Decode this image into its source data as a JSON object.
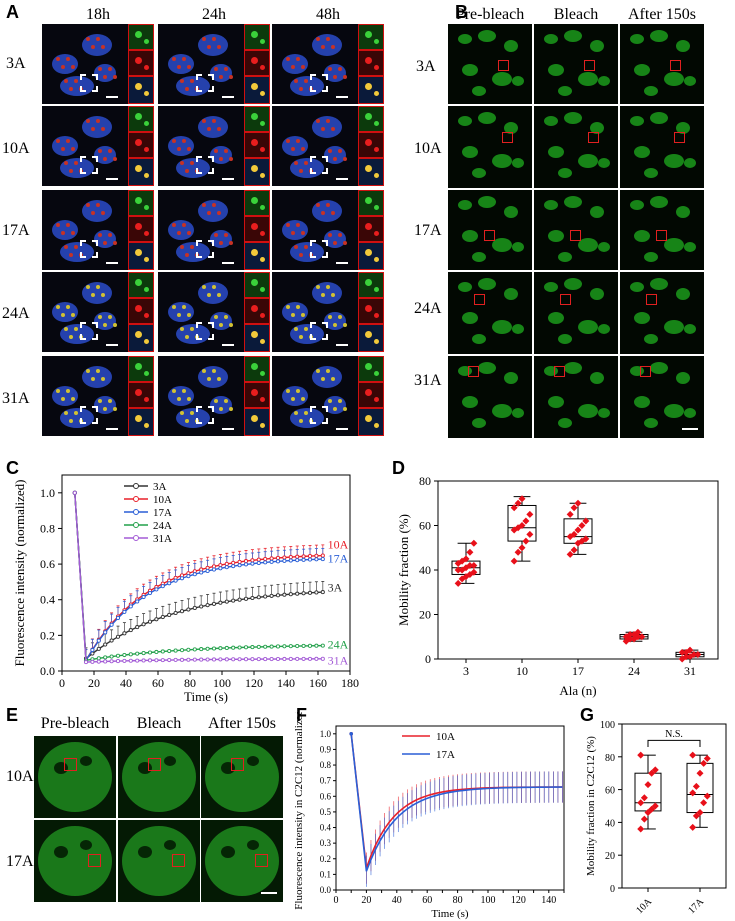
{
  "panels": {
    "A": "A",
    "B": "B",
    "C": "C",
    "D": "D",
    "E": "E",
    "F": "F",
    "G": "G"
  },
  "panelA": {
    "columns": [
      "18h",
      "24h",
      "48h"
    ],
    "rows": [
      "3A",
      "10A",
      "17A",
      "24A",
      "31A"
    ]
  },
  "panelB": {
    "columns": [
      "Pre-bleach",
      "Bleach",
      "After 150s"
    ],
    "rows": [
      "3A",
      "10A",
      "17A",
      "24A",
      "31A"
    ]
  },
  "panelE": {
    "columns": [
      "Pre-bleach",
      "Bleach",
      "After 150s"
    ],
    "rows": [
      "10A",
      "17A"
    ]
  },
  "colors": {
    "c3A": "#333333",
    "c10A": "#e8202a",
    "c17A": "#2a5fd6",
    "c24A": "#22a04a",
    "c31A": "#a35bd6",
    "point": "#e8101a"
  },
  "chart_data": [
    {
      "id": "C",
      "type": "line",
      "xlabel": "Time (s)",
      "ylabel": "Fluorescence intensity (normalized)",
      "xlim": [
        0,
        180
      ],
      "ylim": [
        0,
        1.1
      ],
      "xticks": [
        0,
        20,
        40,
        60,
        80,
        100,
        120,
        140,
        160,
        180
      ],
      "yticks": [
        0,
        0.2,
        0.4,
        0.6,
        0.8,
        1.0
      ],
      "ytick_labels": [
        "0.0",
        "0.2",
        "0.4",
        "0.6",
        "0.8",
        "1.0"
      ],
      "legend": [
        "3A",
        "10A",
        "17A",
        "24A",
        "31A"
      ],
      "end_labels": [
        "10A",
        "17A",
        "3A",
        "24A",
        "31A"
      ],
      "series": [
        {
          "name": "3A",
          "plateau": 0.47,
          "min": 0.07,
          "tau": 55
        },
        {
          "name": "10A",
          "plateau": 0.66,
          "min": 0.06,
          "tau": 38
        },
        {
          "name": "17A",
          "plateau": 0.64,
          "min": 0.06,
          "tau": 38
        },
        {
          "name": "24A",
          "plateau": 0.15,
          "min": 0.06,
          "tau": 60
        },
        {
          "name": "31A",
          "plateau": 0.07,
          "min": 0.05,
          "tau": 60
        }
      ]
    },
    {
      "id": "D",
      "type": "box",
      "xlabel": "Ala (n)",
      "ylabel": "Mobility fraction (%)",
      "ylim": [
        0,
        80
      ],
      "yticks": [
        0,
        20,
        40,
        60,
        80
      ],
      "categories": [
        "3",
        "10",
        "17",
        "24",
        "31"
      ],
      "boxes": [
        {
          "q1": 38,
          "median": 41,
          "q3": 44,
          "wlo": 34,
          "whi": 52,
          "points": [
            34,
            36,
            37,
            38,
            39,
            40,
            40,
            41,
            42,
            42,
            43,
            44,
            45,
            48,
            52
          ]
        },
        {
          "q1": 53,
          "median": 59,
          "q3": 69,
          "wlo": 44,
          "whi": 73,
          "points": [
            44,
            48,
            50,
            53,
            56,
            58,
            59,
            60,
            62,
            65,
            68,
            70,
            72
          ]
        },
        {
          "q1": 52,
          "median": 55,
          "q3": 63,
          "wlo": 47,
          "whi": 70,
          "points": [
            47,
            49,
            52,
            53,
            54,
            55,
            56,
            58,
            60,
            62,
            65,
            68,
            70
          ]
        },
        {
          "q1": 9,
          "median": 10,
          "q3": 11,
          "wlo": 8,
          "whi": 12,
          "points": [
            8,
            9,
            9,
            10,
            10,
            10,
            11,
            11,
            12
          ]
        },
        {
          "q1": 1,
          "median": 2,
          "q3": 3,
          "wlo": 0,
          "whi": 4,
          "points": [
            0,
            1,
            1,
            2,
            2,
            3,
            3,
            4
          ]
        }
      ]
    },
    {
      "id": "F",
      "type": "line",
      "xlabel": "Time (s)",
      "ylabel": "Fluorescence intensity in C2C12 (normalized)",
      "xlim": [
        0,
        150
      ],
      "ylim": [
        0,
        1.05
      ],
      "xticks": [
        0,
        10,
        20,
        30,
        40,
        50,
        60,
        70,
        80,
        90,
        100,
        110,
        120,
        130,
        140,
        150
      ],
      "xtick_labels": [
        "0",
        "",
        "20",
        "",
        "40",
        "",
        "60",
        "",
        "80",
        "",
        "100",
        "",
        "120",
        "",
        "140",
        ""
      ],
      "yticks": [
        0,
        0.1,
        0.2,
        0.3,
        0.4,
        0.5,
        0.6,
        0.7,
        0.8,
        0.9,
        1.0
      ],
      "ytick_labels": [
        "0.0",
        "0.1",
        "0.2",
        "0.3",
        "0.4",
        "0.5",
        "0.6",
        "0.7",
        "0.8",
        "0.9",
        "1.0"
      ],
      "legend": [
        "10A",
        "17A"
      ],
      "series": [
        {
          "name": "10A",
          "plateau": 0.66,
          "min": 0.14,
          "tau": 18
        },
        {
          "name": "17A",
          "plateau": 0.66,
          "min": 0.12,
          "tau": 20
        }
      ]
    },
    {
      "id": "G",
      "type": "box",
      "ylabel": "Mobility fraction in C2C12 (%)",
      "ylim": [
        0,
        100
      ],
      "yticks": [
        0,
        20,
        40,
        60,
        80,
        100
      ],
      "categories": [
        "10A",
        "17A"
      ],
      "annotation": "N.S.",
      "boxes": [
        {
          "q1": 47,
          "median": 52,
          "q3": 70,
          "wlo": 36,
          "whi": 81,
          "points": [
            36,
            42,
            46,
            48,
            50,
            52,
            55,
            63,
            70,
            72,
            81
          ]
        },
        {
          "q1": 46,
          "median": 57,
          "q3": 76,
          "wlo": 37,
          "whi": 81,
          "points": [
            37,
            44,
            46,
            52,
            56,
            58,
            62,
            70,
            76,
            79,
            81
          ]
        }
      ]
    }
  ]
}
